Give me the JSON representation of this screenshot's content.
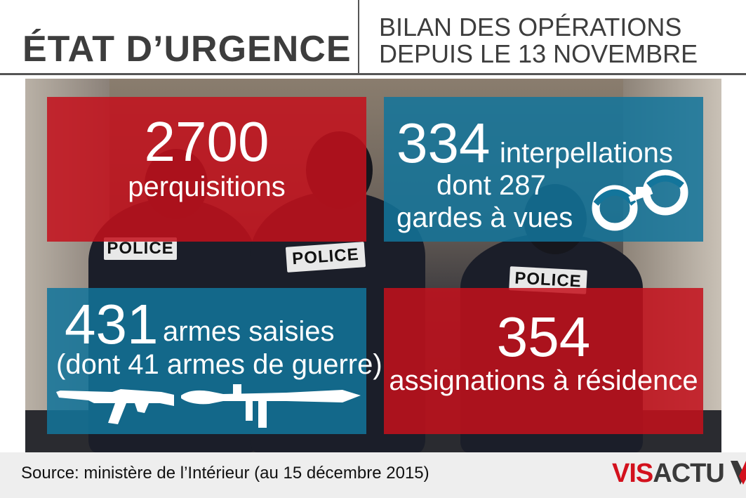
{
  "header": {
    "title": "ÉTAT D’URGENCE",
    "subtitle_line1": "BILAN DES OPÉRATIONS",
    "subtitle_line2": "DEPUIS LE 13 NOVEMBRE"
  },
  "photo": {
    "patches": [
      "POLICE",
      "POLICE",
      "POLICE"
    ]
  },
  "panels": {
    "perquisitions": {
      "number": "2700",
      "label": "perquisitions"
    },
    "interpellations": {
      "number": "334",
      "label": "interpellations",
      "line2": "dont 287",
      "line3": "gardes à vues",
      "icon": "handcuffs-icon"
    },
    "armes": {
      "number": "431",
      "label": "armes saisies",
      "line2": "(dont 41 armes de guerre)",
      "icons": [
        "rifle-icon",
        "rocket-launcher-icon"
      ]
    },
    "assignations": {
      "number": "354",
      "label": "assignations à résidence"
    }
  },
  "footer": {
    "source": "Source: ministère de l’Intérieur (au 15 décembre 2015)",
    "logo_red": "VIS",
    "logo_dark": "ACTU"
  },
  "colors": {
    "red": "#c4101c",
    "blue": "#13759b",
    "title": "#3d3d3d"
  }
}
